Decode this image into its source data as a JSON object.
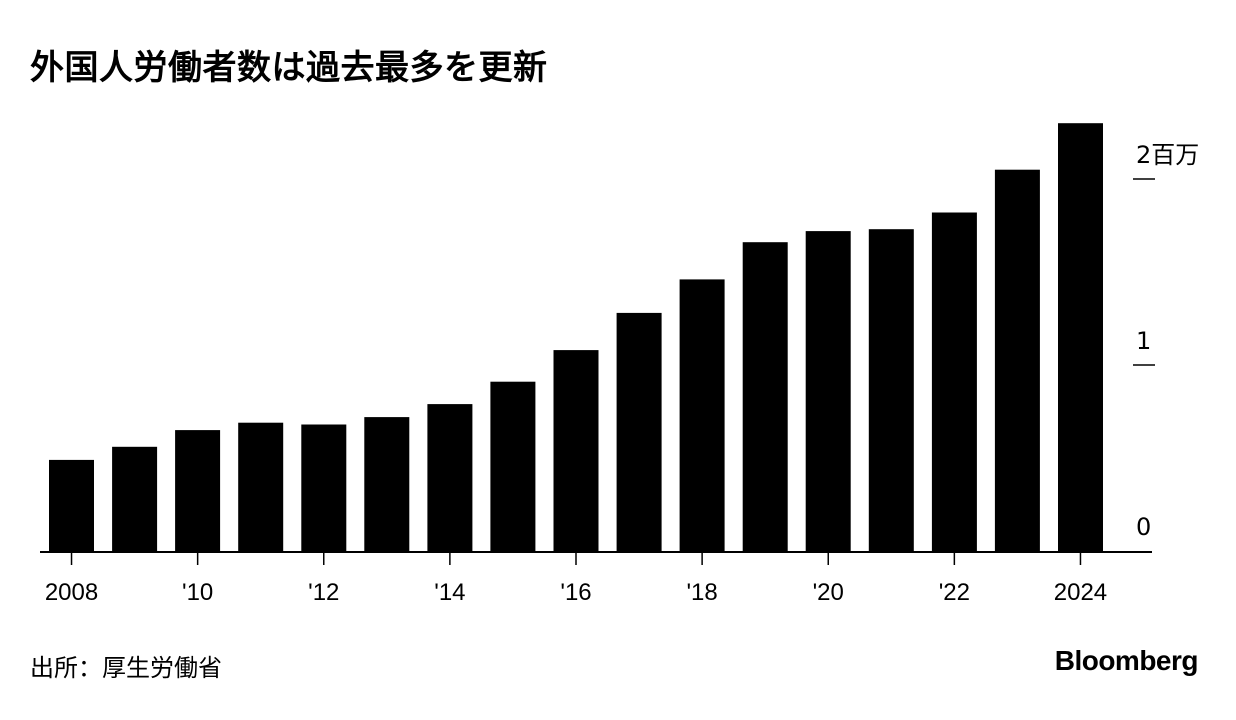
{
  "title": "外国人労働者数は過去最多を更新",
  "source": "出所：厚生労働省",
  "brand": "Bloomberg",
  "chart_data": {
    "type": "bar",
    "categories": [
      "2008",
      "2009",
      "2010",
      "2011",
      "2012",
      "2013",
      "2014",
      "2015",
      "2016",
      "2017",
      "2018",
      "2019",
      "2020",
      "2021",
      "2022",
      "2023",
      "2024"
    ],
    "x_tick_labels": [
      "2008",
      "'10",
      "'12",
      "'14",
      "'16",
      "'18",
      "'20",
      "'22",
      "2024"
    ],
    "x_tick_categories": [
      "2008",
      "2010",
      "2012",
      "2014",
      "2016",
      "2018",
      "2020",
      "2022",
      "2024"
    ],
    "values": [
      0.49,
      0.56,
      0.65,
      0.69,
      0.68,
      0.72,
      0.79,
      0.91,
      1.08,
      1.28,
      1.46,
      1.66,
      1.72,
      1.73,
      1.82,
      2.05,
      2.3
    ],
    "y_ticks": [
      0,
      1,
      2
    ],
    "y_tick_labels": [
      "0",
      "1",
      "2百万"
    ],
    "ylim": [
      0,
      2.35
    ],
    "y_axis_side": "right",
    "bar_color": "#000000",
    "grid": false
  }
}
